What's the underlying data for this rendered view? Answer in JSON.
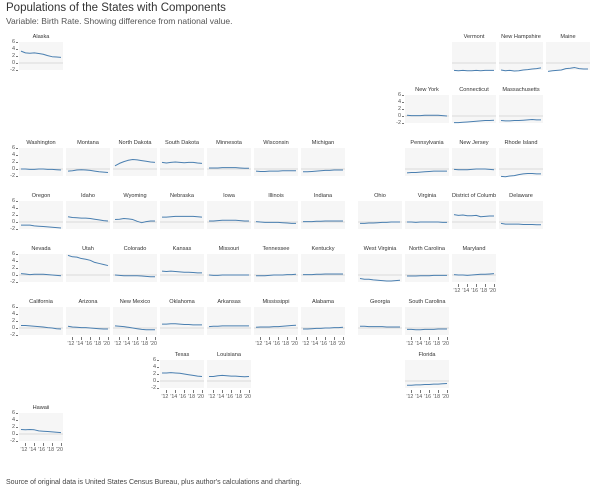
{
  "header": {
    "title": "Populations of the States with Components",
    "subtitle": "Variable: Birth Rate. Showing difference from national value."
  },
  "caption": "Source of original data is United States Census Bureau, plus author's calculations and charting.",
  "colors": {
    "line": "#4a7fb0",
    "panel_bg": "#f6f6f6",
    "zero_line": "#cfcfcf"
  },
  "chart_data": {
    "type": "line",
    "layout": "small-multiples-geographic",
    "x": [
      2011,
      2012,
      2013,
      2014,
      2015,
      2016,
      2017,
      2018,
      2019,
      2020
    ],
    "x_tick_labels": [
      "'12",
      "'14",
      "'16",
      "'18",
      "'20"
    ],
    "ylim": [
      -2,
      6
    ],
    "y_tick_labels": [
      "6",
      "4",
      "2",
      "0",
      "-2"
    ],
    "grid": false,
    "series": [
      {
        "name": "Alaska",
        "values": [
          3.4,
          2.9,
          2.8,
          2.9,
          2.7,
          2.5,
          2.1,
          1.8,
          1.7,
          1.6
        ]
      },
      {
        "name": "Vermont",
        "values": [
          -2.1,
          -2.2,
          -2.1,
          -2.2,
          -2.2,
          -2.1,
          -2.2,
          -2.1,
          -2.1,
          -2.1
        ]
      },
      {
        "name": "New Hampshire",
        "values": [
          -2.0,
          -2.2,
          -2.1,
          -2.3,
          -2.2,
          -2.0,
          -1.9,
          -1.7,
          -1.6,
          -1.4
        ]
      },
      {
        "name": "Maine",
        "values": [
          -2.4,
          -2.2,
          -2.1,
          -2.0,
          -1.6,
          -1.5,
          -1.3,
          -1.6,
          -1.7,
          -1.7
        ]
      },
      {
        "name": "New York",
        "values": [
          0.2,
          0.1,
          0.1,
          0.1,
          0.2,
          0.2,
          0.2,
          0.2,
          0.1,
          0.0
        ]
      },
      {
        "name": "Connecticut",
        "values": [
          -1.9,
          -1.9,
          -1.8,
          -1.7,
          -1.6,
          -1.5,
          -1.4,
          -1.3,
          -1.3,
          -1.2
        ]
      },
      {
        "name": "Massachusetts",
        "values": [
          -1.3,
          -1.4,
          -1.4,
          -1.3,
          -1.3,
          -1.2,
          -1.1,
          -1.0,
          -1.1,
          -1.1
        ]
      },
      {
        "name": "Washington",
        "values": [
          0.0,
          0.0,
          -0.1,
          -0.1,
          0.0,
          0.0,
          -0.1,
          -0.1,
          -0.2,
          -0.3
        ]
      },
      {
        "name": "Montana",
        "values": [
          -0.6,
          -0.5,
          -0.3,
          -0.2,
          -0.3,
          -0.4,
          -0.6,
          -0.8,
          -0.9,
          -1.0
        ]
      },
      {
        "name": "North Dakota",
        "values": [
          0.9,
          1.6,
          2.1,
          2.5,
          2.7,
          2.6,
          2.4,
          2.2,
          2.0,
          1.9
        ]
      },
      {
        "name": "South Dakota",
        "values": [
          1.9,
          1.7,
          1.9,
          2.0,
          1.9,
          1.8,
          1.9,
          1.9,
          1.7,
          1.6
        ]
      },
      {
        "name": "Minnesota",
        "values": [
          0.3,
          0.3,
          0.3,
          0.4,
          0.4,
          0.4,
          0.4,
          0.3,
          0.2,
          0.2
        ]
      },
      {
        "name": "Wisconsin",
        "values": [
          -0.6,
          -0.7,
          -0.7,
          -0.6,
          -0.6,
          -0.6,
          -0.5,
          -0.5,
          -0.5,
          -0.5
        ]
      },
      {
        "name": "Michigan",
        "values": [
          -0.8,
          -0.8,
          -0.7,
          -0.6,
          -0.5,
          -0.4,
          -0.4,
          -0.3,
          -0.3,
          -0.3
        ]
      },
      {
        "name": "Pennsylvania",
        "values": [
          -1.1,
          -1.0,
          -1.0,
          -0.9,
          -0.8,
          -0.7,
          -0.6,
          -0.6,
          -0.6,
          -0.6
        ]
      },
      {
        "name": "New Jersey",
        "values": [
          -0.1,
          -0.2,
          -0.2,
          -0.2,
          -0.1,
          0.0,
          0.0,
          0.0,
          -0.1,
          -0.2
        ]
      },
      {
        "name": "Rhode Island",
        "values": [
          -2.1,
          -2.2,
          -2.0,
          -1.9,
          -1.6,
          -1.4,
          -1.3,
          -1.3,
          -1.4,
          -1.4
        ]
      },
      {
        "name": "Oregon",
        "values": [
          -0.9,
          -0.9,
          -0.9,
          -1.1,
          -1.2,
          -1.3,
          -1.4,
          -1.5,
          -1.6,
          -1.7
        ]
      },
      {
        "name": "Idaho",
        "values": [
          1.5,
          1.3,
          1.2,
          1.1,
          1.1,
          1.0,
          0.8,
          0.6,
          0.4,
          0.3
        ]
      },
      {
        "name": "Wyoming",
        "values": [
          0.7,
          0.8,
          1.0,
          0.9,
          0.7,
          0.2,
          -0.2,
          0.1,
          0.3,
          0.3
        ]
      },
      {
        "name": "Nebraska",
        "values": [
          1.4,
          1.4,
          1.5,
          1.6,
          1.6,
          1.6,
          1.6,
          1.6,
          1.5,
          1.4
        ]
      },
      {
        "name": "Iowa",
        "values": [
          0.3,
          0.3,
          0.4,
          0.5,
          0.5,
          0.5,
          0.5,
          0.4,
          0.3,
          0.3
        ]
      },
      {
        "name": "Illinois",
        "values": [
          0.1,
          0.0,
          -0.1,
          -0.1,
          -0.1,
          -0.1,
          -0.2,
          -0.3,
          -0.4,
          -0.4
        ]
      },
      {
        "name": "Indiana",
        "values": [
          0.1,
          0.1,
          0.1,
          0.2,
          0.2,
          0.3,
          0.3,
          0.3,
          0.3,
          0.3
        ]
      },
      {
        "name": "Ohio",
        "values": [
          -0.4,
          -0.4,
          -0.3,
          -0.3,
          -0.2,
          -0.1,
          -0.1,
          0.0,
          0.0,
          0.0
        ]
      },
      {
        "name": "Virginia",
        "values": [
          0.0,
          0.0,
          -0.1,
          0.0,
          0.0,
          0.0,
          0.0,
          0.0,
          -0.1,
          -0.1
        ]
      },
      {
        "name": "District of Columbia",
        "values": [
          2.1,
          1.9,
          2.0,
          1.8,
          1.8,
          1.9,
          1.5,
          1.6,
          1.7,
          1.7
        ]
      },
      {
        "name": "Delaware",
        "values": [
          -0.4,
          -0.6,
          -0.6,
          -0.6,
          -0.6,
          -0.7,
          -0.7,
          -0.7,
          -0.8,
          -0.8
        ]
      },
      {
        "name": "Nevada",
        "values": [
          0.4,
          0.3,
          0.1,
          0.2,
          0.2,
          0.2,
          0.1,
          0.0,
          -0.1,
          -0.2
        ]
      },
      {
        "name": "Utah",
        "values": [
          5.6,
          5.2,
          5.1,
          4.7,
          4.5,
          4.2,
          3.6,
          3.3,
          3.0,
          2.7
        ]
      },
      {
        "name": "Colorado",
        "values": [
          0.0,
          -0.1,
          -0.2,
          -0.2,
          -0.2,
          -0.2,
          -0.3,
          -0.4,
          -0.5,
          -0.5
        ]
      },
      {
        "name": "Kansas",
        "values": [
          1.1,
          1.0,
          1.1,
          1.0,
          0.9,
          0.8,
          0.8,
          0.7,
          0.6,
          0.6
        ]
      },
      {
        "name": "Missouri",
        "values": [
          0.0,
          -0.1,
          -0.1,
          0.0,
          0.0,
          0.0,
          0.0,
          0.0,
          0.0,
          0.0
        ]
      },
      {
        "name": "Tennessee",
        "values": [
          -0.2,
          -0.2,
          -0.2,
          -0.1,
          0.0,
          0.0,
          0.0,
          0.1,
          0.1,
          0.2
        ]
      },
      {
        "name": "Kentucky",
        "values": [
          0.1,
          0.1,
          0.1,
          0.2,
          0.2,
          0.3,
          0.3,
          0.3,
          0.3,
          0.3
        ]
      },
      {
        "name": "West Virginia",
        "values": [
          -1.0,
          -1.2,
          -1.2,
          -1.4,
          -1.5,
          -1.6,
          -1.7,
          -1.7,
          -1.6,
          -1.5
        ]
      },
      {
        "name": "North Carolina",
        "values": [
          -0.3,
          -0.3,
          -0.3,
          -0.2,
          -0.2,
          -0.2,
          -0.1,
          -0.1,
          -0.1,
          -0.1
        ]
      },
      {
        "name": "Maryland",
        "values": [
          0.1,
          0.0,
          0.0,
          -0.1,
          0.0,
          0.1,
          0.2,
          0.2,
          0.3,
          0.4
        ]
      },
      {
        "name": "California",
        "values": [
          0.7,
          0.7,
          0.6,
          0.5,
          0.4,
          0.3,
          0.1,
          0.0,
          -0.2,
          -0.3
        ]
      },
      {
        "name": "Arizona",
        "values": [
          0.5,
          0.3,
          0.2,
          0.1,
          0.1,
          0.0,
          -0.1,
          -0.2,
          -0.3,
          -0.3
        ]
      },
      {
        "name": "New Mexico",
        "values": [
          0.6,
          0.5,
          0.4,
          0.2,
          0.0,
          -0.2,
          -0.4,
          -0.5,
          -0.5,
          -0.5
        ]
      },
      {
        "name": "Oklahoma",
        "values": [
          1.1,
          1.1,
          1.2,
          1.2,
          1.1,
          1.0,
          1.0,
          0.9,
          0.9,
          0.9
        ]
      },
      {
        "name": "Arkansas",
        "values": [
          0.4,
          0.5,
          0.5,
          0.6,
          0.6,
          0.6,
          0.6,
          0.6,
          0.6,
          0.6
        ]
      },
      {
        "name": "Mississippi",
        "values": [
          0.2,
          0.3,
          0.3,
          0.3,
          0.4,
          0.4,
          0.5,
          0.6,
          0.7,
          0.8
        ]
      },
      {
        "name": "Alabama",
        "values": [
          -0.3,
          -0.3,
          -0.2,
          -0.1,
          -0.1,
          0.0,
          0.0,
          0.1,
          0.1,
          0.2
        ]
      },
      {
        "name": "Georgia",
        "values": [
          0.5,
          0.5,
          0.4,
          0.4,
          0.4,
          0.4,
          0.3,
          0.3,
          0.3,
          0.3
        ]
      },
      {
        "name": "South Carolina",
        "values": [
          -0.4,
          -0.4,
          -0.5,
          -0.5,
          -0.4,
          -0.4,
          -0.4,
          -0.3,
          -0.3,
          -0.3
        ]
      },
      {
        "name": "Texas",
        "values": [
          2.3,
          2.3,
          2.4,
          2.3,
          2.2,
          2.0,
          1.8,
          1.6,
          1.4,
          1.3
        ]
      },
      {
        "name": "Louisiana",
        "values": [
          1.3,
          1.3,
          1.5,
          1.6,
          1.5,
          1.4,
          1.4,
          1.3,
          1.2,
          1.3
        ]
      },
      {
        "name": "Florida",
        "values": [
          -1.2,
          -1.2,
          -1.1,
          -1.1,
          -1.0,
          -1.0,
          -0.9,
          -0.9,
          -0.8,
          -0.7
        ]
      },
      {
        "name": "Hawaii",
        "values": [
          1.3,
          1.2,
          1.3,
          1.2,
          0.9,
          0.8,
          0.7,
          0.6,
          0.5,
          0.4
        ]
      }
    ]
  }
}
